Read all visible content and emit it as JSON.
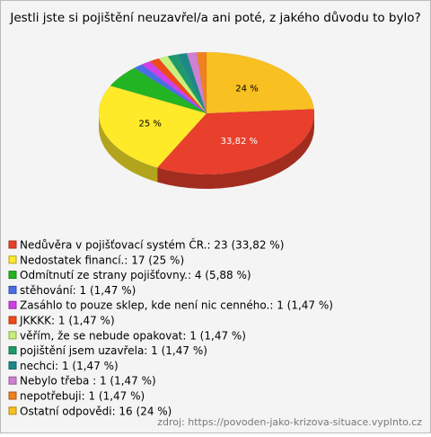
{
  "chart_data": {
    "type": "pie",
    "title": "Jestli jste si pojištění neuzavřel/a ani poté, z jakého důvodu to bylo?",
    "categories": [
      "Nedůvěra v pojišťovací systém ČR.: 23 (33,82 %)",
      "Nedostatek financí.: 17 (25 %)",
      "Odmítnutí ze strany pojišťovny.: 4 (5,88 %)",
      "stěhování: 1 (1,47 %)",
      "Zasáhlo to pouze sklep, kde není nic cenného.: 1 (1,47 %)",
      "JKKKK: 1 (1,47 %)",
      "věřím, že se nebude opakovat: 1 (1,47 %)",
      "pojištění jsem uzavřela: 1 (1,47 %)",
      "nechci: 1 (1,47 %)",
      "Nebylo třeba : 1 (1,47 %)",
      "nepotřebuji: 1 (1,47 %)",
      "Ostatní odpovědi: 16 (24 %)"
    ],
    "values": [
      33.82,
      25,
      5.88,
      1.47,
      1.47,
      1.47,
      1.47,
      1.47,
      1.47,
      1.47,
      1.47,
      24
    ],
    "value_labels": [
      "33,82 %",
      "25 %",
      null,
      null,
      null,
      null,
      null,
      null,
      null,
      null,
      null,
      "24 %"
    ],
    "colors": [
      "#e8402c",
      "#ffea2a",
      "#22b422",
      "#4a6ee6",
      "#d040e6",
      "#ee4a1a",
      "#c8f07a",
      "#1e9a6a",
      "#1e8888",
      "#d080d0",
      "#f08020",
      "#f8c020"
    ],
    "source": "zdroj: https://povoden-jako-krizova-situace.vyplnto.cz"
  }
}
